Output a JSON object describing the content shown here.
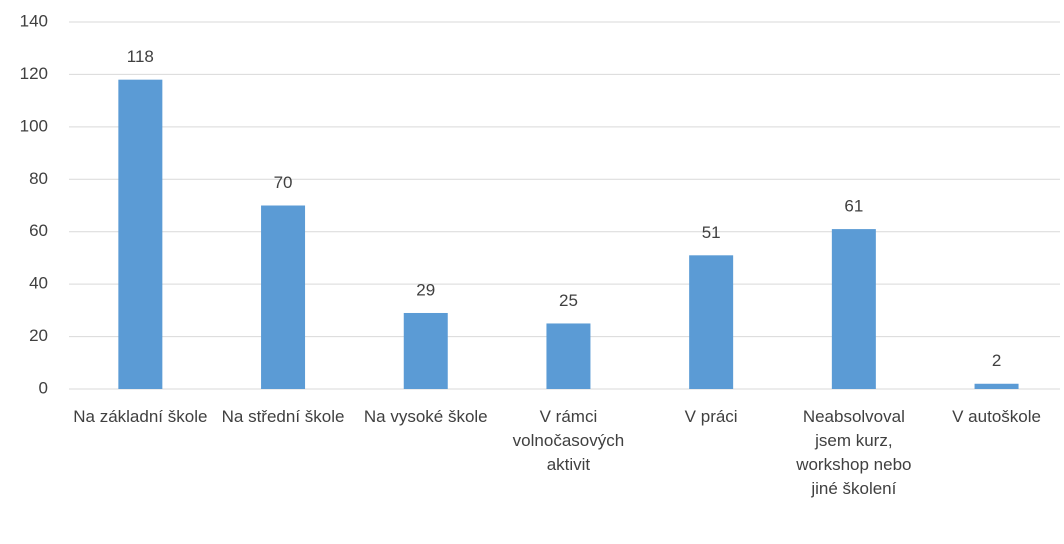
{
  "chart_data": {
    "type": "bar",
    "categories": [
      "Na základní škole",
      "Na střední škole",
      "Na vysoké škole",
      "V rámci volnočasových aktivit",
      "V práci",
      "Neabsolvoval jsem kurz, workshop nebo jiné školení",
      "V autoškole"
    ],
    "values": [
      118,
      70,
      29,
      25,
      51,
      61,
      2
    ],
    "color": "#5b9bd5",
    "ylim": [
      0,
      140
    ],
    "yticks": [
      0,
      20,
      40,
      60,
      80,
      100,
      120,
      140
    ],
    "grid": true
  }
}
